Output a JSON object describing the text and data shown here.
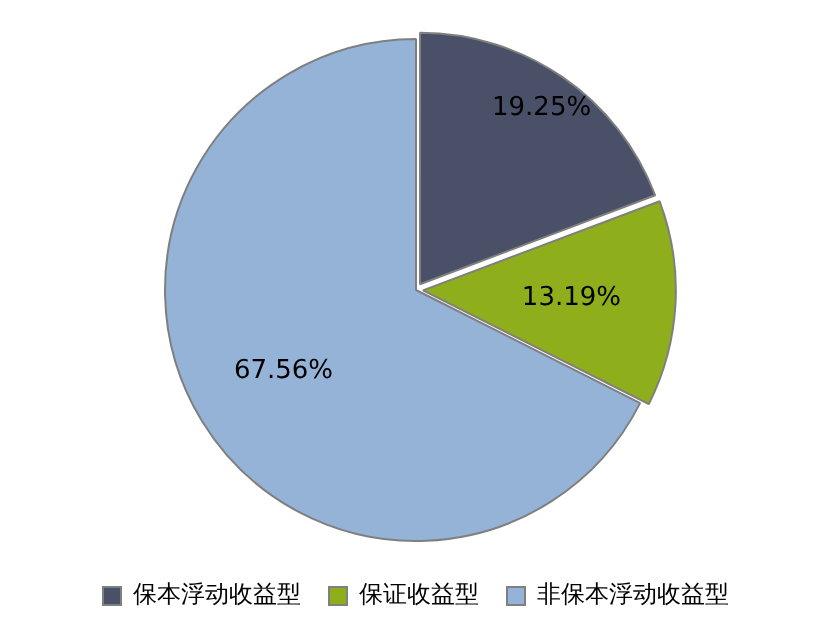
{
  "chart_data": {
    "type": "pie",
    "categories": [
      "保本浮动收益型",
      "保证收益型",
      "非保本浮动收益型"
    ],
    "values": [
      19.25,
      13.19,
      67.56
    ],
    "value_labels": [
      "19.25%",
      "13.19%",
      "67.56%"
    ],
    "colors": [
      "#4a5068",
      "#8fae1b",
      "#95b3d7"
    ],
    "legend": "bottom"
  }
}
